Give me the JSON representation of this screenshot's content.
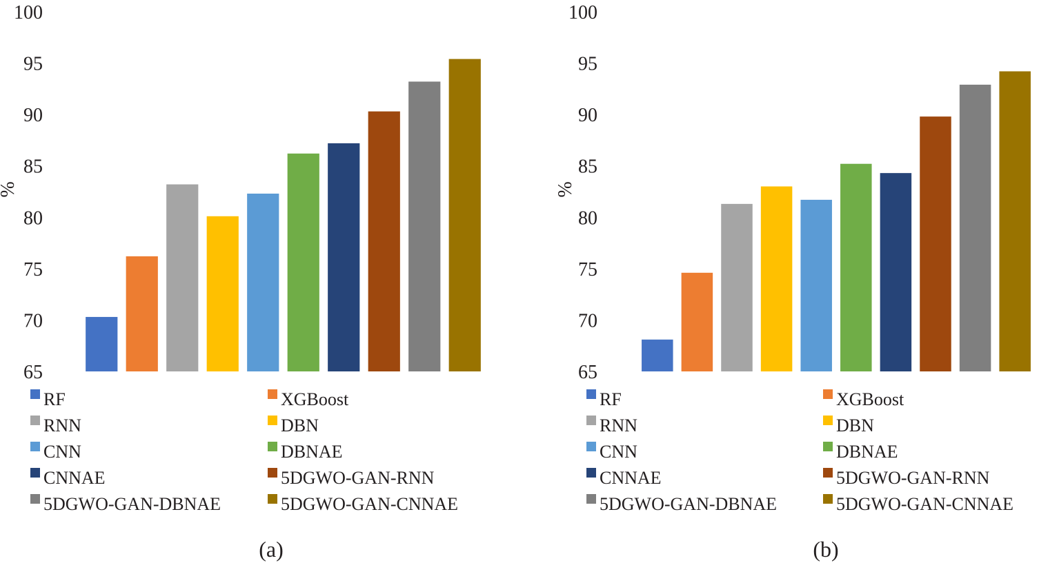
{
  "chart_data": [
    {
      "type": "bar",
      "panel_label": "(a)",
      "ylabel": "%",
      "ylim": [
        65,
        100
      ],
      "yticks": [
        "65",
        "70",
        "75",
        "80",
        "85",
        "90",
        "95",
        "100"
      ],
      "grid": false,
      "legend_position": "bottom",
      "categories": [
        "RF",
        "XGBoost",
        "RNN",
        "DBN",
        "CNN",
        "DBNAE",
        "CNNAE",
        "5DGWO-GAN-RNN",
        "5DGWO-GAN-DBNAE",
        "5DGWO-GAN-CNNAE"
      ],
      "values": [
        70.3,
        76.2,
        83.2,
        80.1,
        82.3,
        86.2,
        87.2,
        90.3,
        93.2,
        95.4
      ]
    },
    {
      "type": "bar",
      "panel_label": "(b)",
      "ylabel": "%",
      "ylim": [
        65,
        100
      ],
      "yticks": [
        "65",
        "70",
        "75",
        "80",
        "85",
        "90",
        "95",
        "100"
      ],
      "grid": false,
      "legend_position": "bottom",
      "categories": [
        "RF",
        "XGBoost",
        "RNN",
        "DBN",
        "CNN",
        "DBNAE",
        "CNNAE",
        "5DGWO-GAN-RNN",
        "5DGWO-GAN-DBNAE",
        "5DGWO-GAN-CNNAE"
      ],
      "values": [
        68.1,
        74.6,
        81.3,
        83.0,
        81.7,
        85.2,
        84.3,
        89.8,
        92.9,
        94.2
      ]
    }
  ],
  "series_colors": [
    "#4472C4",
    "#ED7D31",
    "#A5A5A5",
    "#FFC000",
    "#5B9BD5",
    "#70AD47",
    "#264478",
    "#9E480E",
    "#7F7F7F",
    "#997300"
  ]
}
